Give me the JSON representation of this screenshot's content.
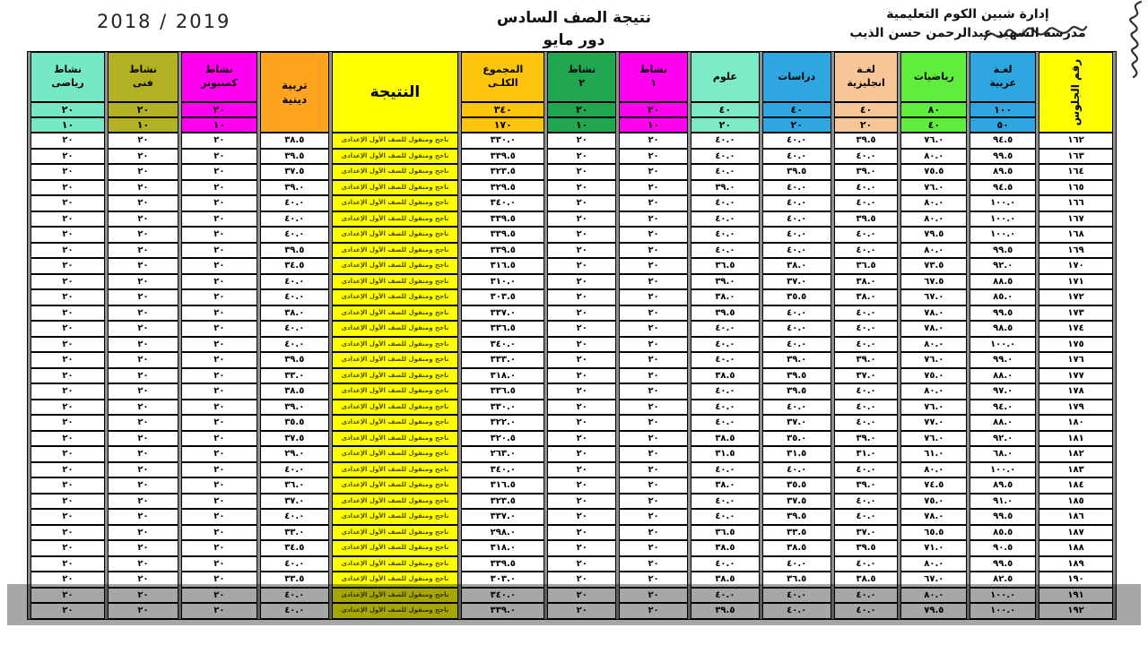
{
  "page": {
    "year": "2018 / 2019",
    "title_line1": "نتيجة الصف السادس",
    "title_line2": "دور مايو",
    "admin_line": "إدارة شبين الكوم التعليمية",
    "school_line": "مدرسة الشهيد عبدالرحمن حسن الذيب"
  },
  "table": {
    "result_text": "ناجح ومنقول للصف الأول الإعدادى",
    "columns": [
      {
        "key": "seat",
        "label": "رقم الجلوس",
        "color": "#ffff00",
        "vertical": true
      },
      {
        "key": "arabic",
        "label": "لغـة\nعربية",
        "color": "#2ea7e0",
        "max": "١٠٠",
        "min": "٥٠"
      },
      {
        "key": "math",
        "label": "رياضيات",
        "color": "#5fee3c",
        "max": "٨٠",
        "min": "٤٠"
      },
      {
        "key": "english",
        "label": "لغـة\nانجليزية",
        "color": "#f6c697",
        "max": "٤٠",
        "min": "٢٠"
      },
      {
        "key": "studies",
        "label": "دراسات",
        "color": "#2ea7e0",
        "max": "٤٠",
        "min": "٢٠"
      },
      {
        "key": "science",
        "label": "علوم",
        "color": "#7deac7",
        "max": "٤٠",
        "min": "٢٠"
      },
      {
        "key": "act1",
        "label": "نشاط\n١",
        "color": "#ff00f0",
        "max": "٢٠",
        "min": "١٠"
      },
      {
        "key": "act2",
        "label": "نشاط\n٢",
        "color": "#21a750",
        "max": "٢٠",
        "min": "١٠"
      },
      {
        "key": "total",
        "label": "المجموع\nالكلـى",
        "color": "#ffc40e",
        "max": "٣٤٠",
        "min": "١٧٠"
      },
      {
        "key": "result",
        "label": "النتيجة",
        "color": "#ffff00"
      },
      {
        "key": "religion",
        "label": "تربية\nدينية",
        "color": "#ffa41e"
      },
      {
        "key": "computer",
        "label": "نشاط\nكمبيوتر",
        "color": "#ff00f0",
        "max": "٢٠",
        "min": "١٠"
      },
      {
        "key": "art",
        "label": "نشاط\nفنى",
        "color": "#b3b024",
        "max": "٢٠",
        "min": "١٠"
      },
      {
        "key": "sport",
        "label": "نشاط\nرياضى",
        "color": "#77e8c6",
        "max": "٢٠",
        "min": "١٠"
      }
    ],
    "rows": [
      [
        "١٦٢",
        "٩٤.٥",
        "٧٦.٠",
        "٣٩.٥",
        "٤٠.٠",
        "٤٠.٠",
        "٢٠",
        "٢٠",
        "٣٣٠.٠",
        "٣٨.٥",
        "٢٠",
        "٢٠",
        "٢٠"
      ],
      [
        "١٦٣",
        "٩٩.٥",
        "٨٠.٠",
        "٤٠.٠",
        "٤٠.٠",
        "٤٠.٠",
        "٢٠",
        "٢٠",
        "٣٣٩.٥",
        "٣٩.٥",
        "٢٠",
        "٢٠",
        "٢٠"
      ],
      [
        "١٦٤",
        "٨٩.٥",
        "٧٥.٥",
        "٣٩.٠",
        "٣٩.٥",
        "٤٠.٠",
        "٢٠",
        "٢٠",
        "٣٢٣.٥",
        "٣٧.٥",
        "٢٠",
        "٢٠",
        "٢٠"
      ],
      [
        "١٦٥",
        "٩٤.٥",
        "٧٦.٠",
        "٤٠.٠",
        "٤٠.٠",
        "٣٩.٠",
        "٢٠",
        "٢٠",
        "٣٢٩.٥",
        "٣٩.٠",
        "٢٠",
        "٢٠",
        "٢٠"
      ],
      [
        "١٦٦",
        "١٠٠.٠",
        "٨٠.٠",
        "٤٠.٠",
        "٤٠.٠",
        "٤٠.٠",
        "٢٠",
        "٢٠",
        "٣٤٠.٠",
        "٤٠.٠",
        "٢٠",
        "٢٠",
        "٢٠"
      ],
      [
        "١٦٧",
        "١٠٠.٠",
        "٨٠.٠",
        "٣٩.٥",
        "٤٠.٠",
        "٤٠.٠",
        "٢٠",
        "٢٠",
        "٣٣٩.٥",
        "٤٠.٠",
        "٢٠",
        "٢٠",
        "٢٠"
      ],
      [
        "١٦٨",
        "١٠٠.٠",
        "٧٩.٥",
        "٤٠.٠",
        "٤٠.٠",
        "٤٠.٠",
        "٢٠",
        "٢٠",
        "٣٣٩.٥",
        "٤٠.٠",
        "٢٠",
        "٢٠",
        "٢٠"
      ],
      [
        "١٦٩",
        "٩٩.٥",
        "٨٠.٠",
        "٤٠.٠",
        "٤٠.٠",
        "٤٠.٠",
        "٢٠",
        "٢٠",
        "٣٣٩.٥",
        "٣٩.٥",
        "٢٠",
        "٢٠",
        "٢٠"
      ],
      [
        "١٧٠",
        "٩٢.٠",
        "٧٣.٥",
        "٣٦.٥",
        "٣٨.٠",
        "٣٦.٥",
        "٢٠",
        "٢٠",
        "٣١٦.٥",
        "٣٤.٥",
        "٢٠",
        "٢٠",
        "٢٠"
      ],
      [
        "١٧١",
        "٨٨.٥",
        "٦٧.٥",
        "٣٨.٠",
        "٣٧.٠",
        "٣٩.٠",
        "٢٠",
        "٢٠",
        "٣١٠.٠",
        "٤٠.٠",
        "٢٠",
        "٢٠",
        "٢٠"
      ],
      [
        "١٧٢",
        "٨٥.٠",
        "٦٧.٠",
        "٣٨.٠",
        "٣٥.٥",
        "٣٨.٠",
        "٢٠",
        "٢٠",
        "٣٠٣.٥",
        "٤٠.٠",
        "٢٠",
        "٢٠",
        "٢٠"
      ],
      [
        "١٧٣",
        "٩٩.٥",
        "٧٨.٠",
        "٤٠.٠",
        "٤٠.٠",
        "٣٩.٥",
        "٢٠",
        "٢٠",
        "٣٣٧.٠",
        "٣٨.٠",
        "٢٠",
        "٢٠",
        "٢٠"
      ],
      [
        "١٧٤",
        "٩٨.٥",
        "٧٨.٠",
        "٤٠.٠",
        "٤٠.٠",
        "٤٠.٠",
        "٢٠",
        "٢٠",
        "٣٣٦.٥",
        "٤٠.٠",
        "٢٠",
        "٢٠",
        "٢٠"
      ],
      [
        "١٧٥",
        "١٠٠.٠",
        "٨٠.٠",
        "٤٠.٠",
        "٤٠.٠",
        "٤٠.٠",
        "٢٠",
        "٢٠",
        "٣٤٠.٠",
        "٤٠.٠",
        "٢٠",
        "٢٠",
        "٢٠"
      ],
      [
        "١٧٦",
        "٩٩.٠",
        "٧٦.٠",
        "٣٩.٠",
        "٣٩.٠",
        "٤٠.٠",
        "٢٠",
        "٢٠",
        "٣٣٣.٠",
        "٣٩.٥",
        "٢٠",
        "٢٠",
        "٢٠"
      ],
      [
        "١٧٧",
        "٨٨.٠",
        "٧٥.٠",
        "٣٧.٠",
        "٣٩.٥",
        "٣٨.٥",
        "٢٠",
        "٢٠",
        "٣١٨.٠",
        "٣٣.٠",
        "٢٠",
        "٢٠",
        "٢٠"
      ],
      [
        "١٧٨",
        "٩٧.٠",
        "٨٠.٠",
        "٤٠.٠",
        "٣٩.٥",
        "٤٠.٠",
        "٢٠",
        "٢٠",
        "٣٣٦.٥",
        "٣٨.٥",
        "٢٠",
        "٢٠",
        "٢٠"
      ],
      [
        "١٧٩",
        "٩٤.٠",
        "٧٦.٠",
        "٤٠.٠",
        "٤٠.٠",
        "٤٠.٠",
        "٢٠",
        "٢٠",
        "٣٣٠.٠",
        "٣٩.٠",
        "٢٠",
        "٢٠",
        "٢٠"
      ],
      [
        "١٨٠",
        "٨٨.٠",
        "٧٧.٠",
        "٤٠.٠",
        "٣٧.٠",
        "٤٠.٠",
        "٢٠",
        "٢٠",
        "٣٢٢.٠",
        "٣٥.٥",
        "٢٠",
        "٢٠",
        "٢٠"
      ],
      [
        "١٨١",
        "٩٢.٠",
        "٧٦.٠",
        "٣٩.٠",
        "٣٥.٠",
        "٣٨.٥",
        "٢٠",
        "٢٠",
        "٣٢٠.٥",
        "٣٧.٥",
        "٢٠",
        "٢٠",
        "٢٠"
      ],
      [
        "١٨٢",
        "٦٨.٠",
        "٦١.٠",
        "٣١.٠",
        "٣١.٥",
        "٣١.٥",
        "٢٠",
        "٢٠",
        "٢٦٣.٠",
        "٢٩.٠",
        "٢٠",
        "٢٠",
        "٢٠"
      ],
      [
        "١٨٣",
        "١٠٠.٠",
        "٨٠.٠",
        "٤٠.٠",
        "٤٠.٠",
        "٤٠.٠",
        "٢٠",
        "٢٠",
        "٣٤٠.٠",
        "٤٠.٠",
        "٢٠",
        "٢٠",
        "٢٠"
      ],
      [
        "١٨٤",
        "٨٩.٥",
        "٧٤.٥",
        "٣٩.٠",
        "٣٥.٥",
        "٣٨.٠",
        "٢٠",
        "٢٠",
        "٣١٦.٥",
        "٣٦.٠",
        "٢٠",
        "٢٠",
        "٢٠"
      ],
      [
        "١٨٥",
        "٩١.٠",
        "٧٥.٠",
        "٤٠.٠",
        "٣٧.٥",
        "٤٠.٠",
        "٢٠",
        "٢٠",
        "٣٢٣.٥",
        "٣٧.٠",
        "٢٠",
        "٢٠",
        "٢٠"
      ],
      [
        "١٨٦",
        "٩٩.٥",
        "٧٨.٠",
        "٤٠.٠",
        "٣٩.٥",
        "٤٠.٠",
        "٢٠",
        "٢٠",
        "٣٣٧.٠",
        "٤٠.٠",
        "٢٠",
        "٢٠",
        "٢٠"
      ],
      [
        "١٨٧",
        "٨٥.٥",
        "٦٥.٥",
        "٣٧.٠",
        "٣٣.٥",
        "٣٦.٥",
        "٢٠",
        "٢٠",
        "٢٩٨.٠",
        "٣٣.٠",
        "٢٠",
        "٢٠",
        "٢٠"
      ],
      [
        "١٨٨",
        "٩٠.٥",
        "٧١.٠",
        "٣٩.٥",
        "٣٨.٥",
        "٣٨.٥",
        "٢٠",
        "٢٠",
        "٣١٨.٠",
        "٣٤.٥",
        "٢٠",
        "٢٠",
        "٢٠"
      ],
      [
        "١٨٩",
        "٩٩.٥",
        "٨٠.٠",
        "٤٠.٠",
        "٤٠.٠",
        "٤٠.٠",
        "٢٠",
        "٢٠",
        "٣٣٩.٥",
        "٤٠.٠",
        "٢٠",
        "٢٠",
        "٢٠"
      ],
      [
        "١٩٠",
        "٨٢.٥",
        "٦٧.٠",
        "٣٨.٥",
        "٣٦.٥",
        "٣٨.٥",
        "٢٠",
        "٢٠",
        "٣٠٣.٠",
        "٣٣.٥",
        "٢٠",
        "٢٠",
        "٢٠"
      ],
      [
        "١٩١",
        "١٠٠.٠",
        "٨٠.٠",
        "٤٠.٠",
        "٤٠.٠",
        "٤٠.٠",
        "٢٠",
        "٢٠",
        "٣٤٠.٠",
        "٤٠.٠",
        "٢٠",
        "٢٠",
        "٢٠"
      ],
      [
        "١٩٢",
        "١٠٠.٠",
        "٧٩.٥",
        "٤٠.٠",
        "٤٠.٠",
        "٣٩.٥",
        "٢٠",
        "٢٠",
        "٣٣٩.٠",
        "٤٠.٠",
        "٢٠",
        "٢٠",
        "٢٠"
      ]
    ]
  }
}
